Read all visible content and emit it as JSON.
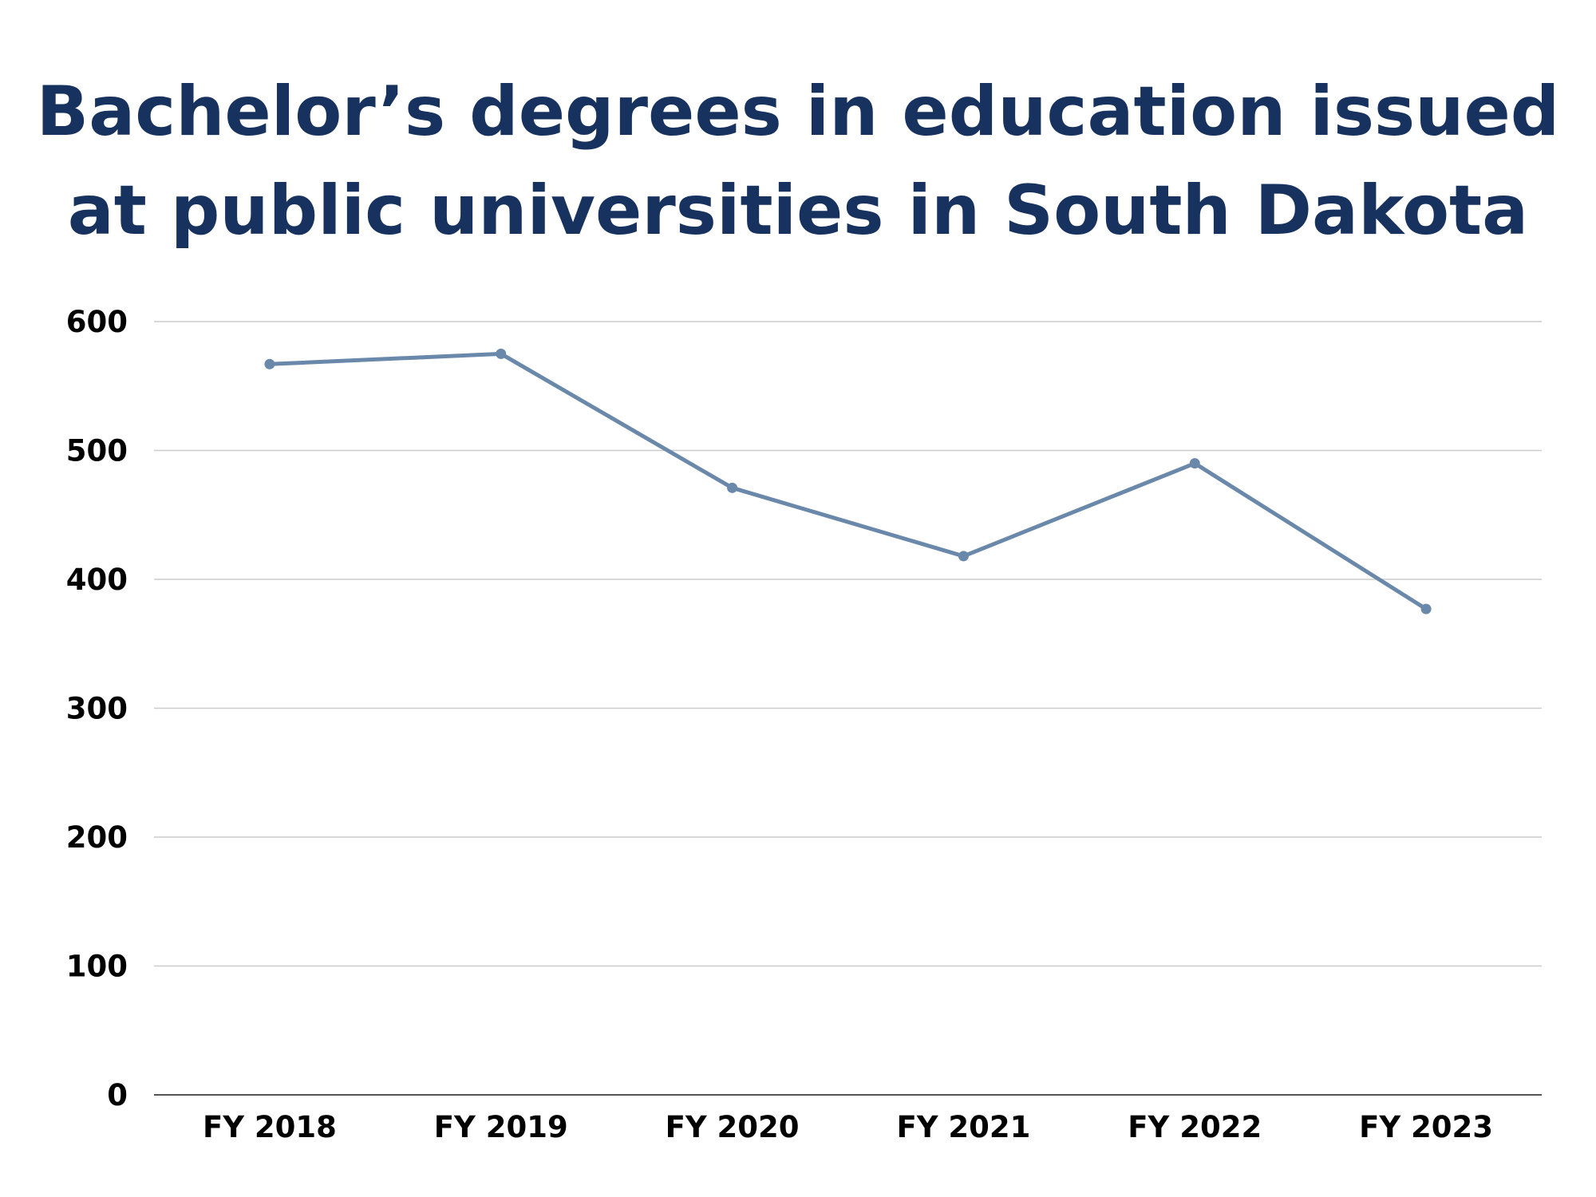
{
  "chart_data": {
    "type": "line",
    "title_lines": [
      "Bachelor’s degrees in education issued",
      "at public universities in South Dakota"
    ],
    "categories": [
      "FY 2018",
      "FY 2019",
      "FY 2020",
      "FY 2021",
      "FY 2022",
      "FY 2023"
    ],
    "series": [
      {
        "values": [
          567,
          575,
          471,
          418,
          490,
          377
        ],
        "color": "#6a88aa"
      }
    ],
    "y_ticks": [
      "0",
      "100",
      "200",
      "300",
      "400",
      "500",
      "600"
    ],
    "ylim": [
      0,
      600
    ],
    "grid": true,
    "title_color": "#17325e",
    "gridline_color": "#cccccc",
    "axis_color": "#555555"
  }
}
